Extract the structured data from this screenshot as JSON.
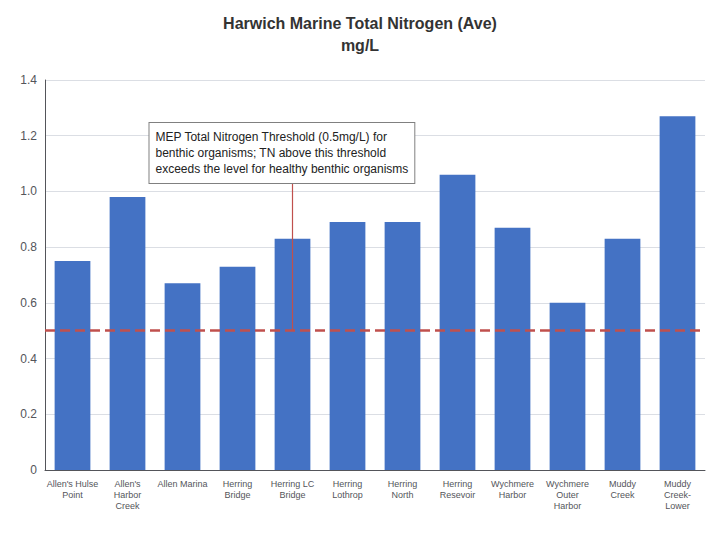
{
  "chart_data": {
    "type": "bar",
    "title": "Harwich Marine Total Nitrogen (Ave)",
    "subtitle": "mg/L",
    "categories": [
      "Allen's Hulse\nPoint",
      "Allen's\nHarbor\nCreek",
      "Allen Marina",
      "Herring\nBridge",
      "Herring LC\nBridge",
      "Herring\nLothrop",
      "Herring\nNorth",
      "Herring\nResevoir",
      "Wychmere\nHarbor",
      "Wychmere\nOuter\nHarbor",
      "Muddy\nCreek",
      "Muddy\nCreek-\nLower"
    ],
    "values": [
      0.75,
      0.98,
      0.67,
      0.73,
      0.83,
      0.89,
      0.89,
      1.06,
      0.87,
      0.6,
      0.83,
      1.27
    ],
    "color": "#4472C4",
    "threshold": {
      "value": 0.5,
      "color": "#C0504D"
    },
    "annotation": "MEP Total Nitrogen Threshold (0.5mg/L) for\nbenthic organisms; TN above this threshold\nexceeds the level for healthy benthic organisms",
    "ylim": [
      0,
      1.4
    ],
    "yticks": [
      0,
      0.2,
      0.4,
      0.6,
      0.8,
      {
        "value": 1,
        "label": "1.0"
      },
      1.2,
      1.4
    ],
    "grid": true
  }
}
